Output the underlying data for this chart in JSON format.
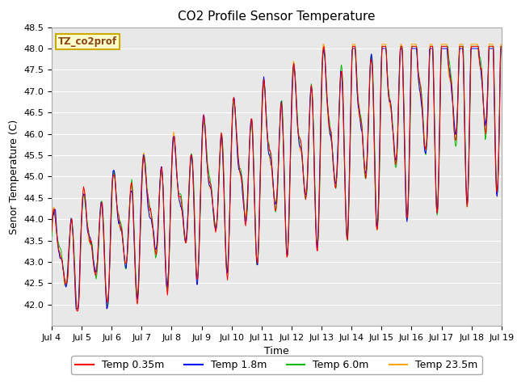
{
  "title": "CO2 Profile Sensor Temperature",
  "ylabel": "Senor Temperature (C)",
  "xlabel": "Time",
  "ylim": [
    41.5,
    48.5
  ],
  "yticks": [
    42.0,
    42.5,
    43.0,
    43.5,
    44.0,
    44.5,
    45.0,
    45.5,
    46.0,
    46.5,
    47.0,
    47.5,
    48.0,
    48.5
  ],
  "xtick_labels": [
    "Jul 4",
    "Jul 5",
    "Jul 6",
    "Jul 7",
    "Jul 8",
    "Jul 9",
    "Jul 10",
    "Jul 11",
    "Jul 12",
    "Jul 13",
    "Jul 14",
    "Jul 15",
    "Jul 16",
    "Jul 17",
    "Jul 18",
    "Jul 19"
  ],
  "colors": {
    "red": "#FF0000",
    "blue": "#0000FF",
    "green": "#00BB00",
    "orange": "#FFA500"
  },
  "legend_labels": [
    "Temp 0.35m",
    "Temp 1.8m",
    "Temp 6.0m",
    "Temp 23.5m"
  ],
  "annotation_text": "TZ_co2prof",
  "annotation_bbox_facecolor": "#FFFFCC",
  "annotation_bbox_edgecolor": "#CCAA00",
  "background_color": "#E8E8E8",
  "title_fontsize": 11,
  "axis_fontsize": 9,
  "tick_fontsize": 8,
  "legend_fontsize": 9
}
